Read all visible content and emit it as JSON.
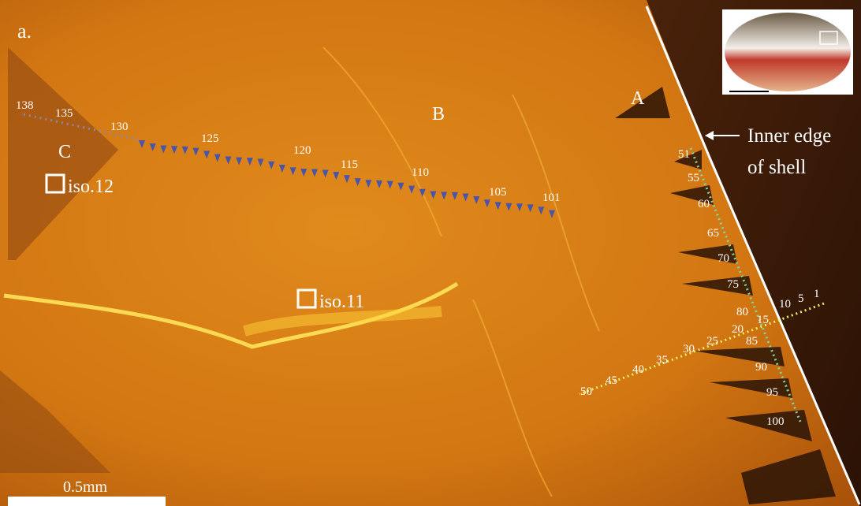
{
  "panel_label": "a.",
  "regions": {
    "A": "A",
    "B": "B",
    "C": "C"
  },
  "isotope_sites": [
    "iso.12",
    "iso.11"
  ],
  "shell_edge_label": [
    "Inner edge",
    "of shell"
  ],
  "scale_bar": "0.5mm",
  "transects": {
    "yellow": {
      "labels": [
        "1",
        "5",
        "10",
        "15",
        "20",
        "25",
        "30",
        "35",
        "40",
        "45",
        "50"
      ]
    },
    "green": {
      "labels": [
        "51",
        "55",
        "60",
        "65",
        "70",
        "75",
        "80",
        "85",
        "90",
        "95",
        "100"
      ]
    },
    "blue": {
      "labels": [
        "101",
        "105",
        "110",
        "115",
        "120",
        "125",
        "130",
        "135",
        "138"
      ]
    }
  }
}
